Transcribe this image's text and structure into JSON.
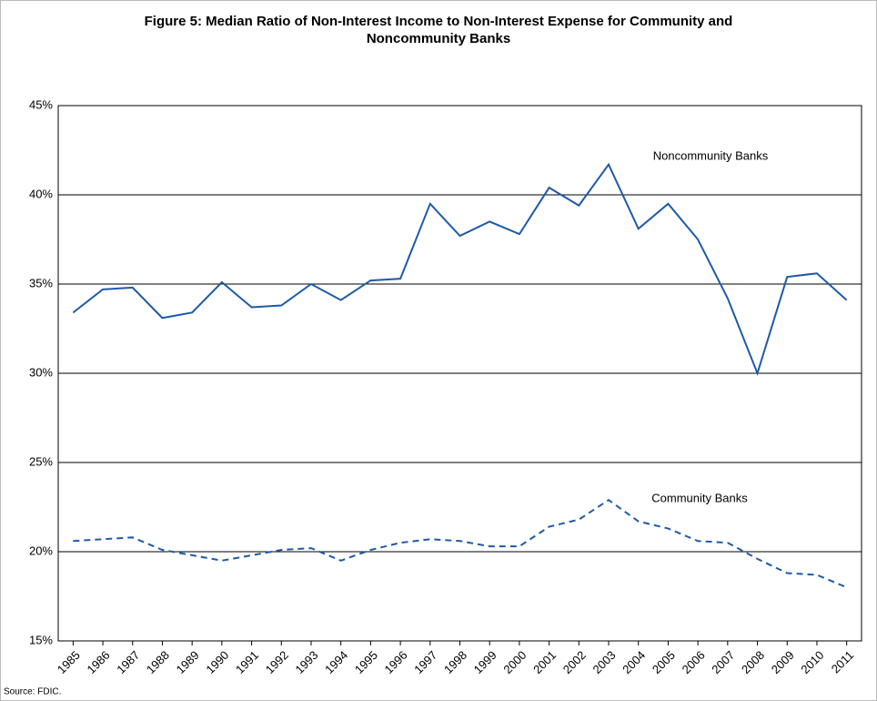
{
  "chart_data": {
    "type": "line",
    "title": "Figure 5: Median Ratio of Non-Interest Income to Non-Interest Expense for Community and Noncommunity Banks",
    "note": "Source: FDIC.",
    "categories": [
      "1985",
      "1986",
      "1987",
      "1988",
      "1989",
      "1990",
      "1991",
      "1992",
      "1993",
      "1994",
      "1995",
      "1996",
      "1997",
      "1998",
      "1999",
      "2000",
      "2001",
      "2002",
      "2003",
      "2004",
      "2005",
      "2006",
      "2007",
      "2008",
      "2009",
      "2010",
      "2011"
    ],
    "series": [
      {
        "name": "Noncommunity Banks",
        "color": "#1f5aa6",
        "line_style": "solid",
        "values": [
          33.4,
          34.7,
          34.8,
          33.1,
          33.4,
          35.1,
          33.7,
          33.8,
          35.0,
          34.1,
          35.2,
          35.3,
          39.5,
          37.7,
          38.5,
          37.8,
          40.4,
          39.4,
          41.7,
          38.1,
          39.5,
          37.5,
          34.2,
          30.0,
          35.4,
          35.6,
          34.1
        ]
      },
      {
        "name": "Community Banks",
        "color": "#1f5aa6",
        "line_style": "dashed",
        "values": [
          20.6,
          20.7,
          20.8,
          20.1,
          19.8,
          19.5,
          19.8,
          20.1,
          20.2,
          19.5,
          20.1,
          20.5,
          20.7,
          20.6,
          20.3,
          20.3,
          21.4,
          21.8,
          22.9,
          21.7,
          21.3,
          20.6,
          20.5,
          19.6,
          18.8,
          18.7,
          18.0
        ]
      }
    ],
    "ylim": [
      15,
      45
    ],
    "yticks": [
      {
        "value": 15,
        "label": "15%"
      },
      {
        "value": 20,
        "label": "20%"
      },
      {
        "value": 25,
        "label": "25%"
      },
      {
        "value": 30,
        "label": "30%"
      },
      {
        "value": 35,
        "label": "35%"
      },
      {
        "value": 40,
        "label": "40%"
      },
      {
        "value": 45,
        "label": "45%"
      }
    ],
    "grid": true
  }
}
